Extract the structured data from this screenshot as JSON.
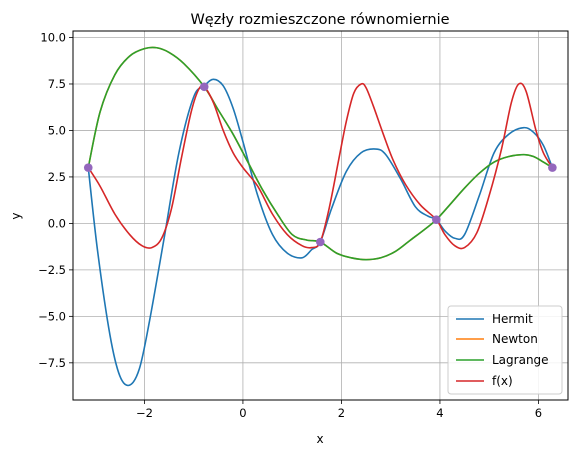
{
  "chart_data": {
    "type": "line",
    "title": "Węzły rozmieszczone równomiernie",
    "xlabel": "x",
    "ylabel": "y",
    "xlim": [
      -3.45,
      6.6
    ],
    "ylim": [
      -9.5,
      10.35
    ],
    "xticks": [
      -2,
      0,
      2,
      4,
      6
    ],
    "xtick_labels": [
      "−2",
      "0",
      "2",
      "4",
      "6"
    ],
    "yticks": [
      -7.5,
      -5.0,
      -2.5,
      0.0,
      2.5,
      5.0,
      7.5,
      10.0
    ],
    "ytick_labels": [
      "−7.5",
      "−5.0",
      "−2.5",
      "0.0",
      "2.5",
      "5.0",
      "7.5",
      "10.0"
    ],
    "grid": true,
    "legend_position": "lower-right",
    "series": [
      {
        "name": "Hermit",
        "color": "#1f77b4",
        "x": [
          -3.14,
          -2.95,
          -2.7,
          -2.5,
          -2.3,
          -2.1,
          -1.9,
          -1.6,
          -1.3,
          -1.0,
          -0.785,
          -0.6,
          -0.4,
          -0.2,
          0.0,
          0.3,
          0.6,
          0.9,
          1.2,
          1.4,
          1.571,
          1.8,
          2.1,
          2.4,
          2.7,
          2.9,
          3.2,
          3.5,
          3.75,
          3.927,
          4.1,
          4.3,
          4.5,
          4.8,
          5.1,
          5.4,
          5.7,
          5.9,
          6.1,
          6.283
        ],
        "y": [
          3.0,
          -1.5,
          -6.0,
          -8.2,
          -8.7,
          -7.8,
          -5.3,
          -0.8,
          3.8,
          6.8,
          7.4,
          7.75,
          7.4,
          6.2,
          4.4,
          1.5,
          -0.6,
          -1.6,
          -1.85,
          -1.4,
          -1.0,
          0.8,
          2.8,
          3.8,
          4.0,
          3.7,
          2.4,
          0.9,
          0.4,
          0.2,
          -0.4,
          -0.8,
          -0.6,
          1.5,
          3.8,
          4.8,
          5.15,
          4.9,
          4.2,
          3.0
        ]
      },
      {
        "name": "Newton",
        "color": "#ff7f0e",
        "x": [
          -3.14,
          -2.9,
          -2.6,
          -2.3,
          -2.0,
          -1.75,
          -1.5,
          -1.2,
          -0.785,
          -0.5,
          -0.2,
          0.1,
          0.4,
          0.7,
          1.0,
          1.3,
          1.571,
          1.9,
          2.2,
          2.5,
          2.8,
          3.1,
          3.4,
          3.7,
          3.927,
          4.2,
          4.5,
          4.8,
          5.1,
          5.4,
          5.7,
          5.9,
          6.1,
          6.283
        ],
        "y": [
          3.0,
          6.0,
          8.0,
          9.0,
          9.4,
          9.45,
          9.2,
          8.6,
          7.35,
          6.1,
          4.8,
          3.3,
          1.8,
          0.5,
          -0.6,
          -0.9,
          -1.0,
          -1.6,
          -1.85,
          -1.95,
          -1.85,
          -1.5,
          -0.9,
          -0.3,
          0.2,
          1.0,
          1.9,
          2.7,
          3.3,
          3.6,
          3.7,
          3.6,
          3.3,
          3.0
        ]
      },
      {
        "name": "Lagrange",
        "color": "#2ca02c",
        "x": [
          -3.14,
          -2.9,
          -2.6,
          -2.3,
          -2.0,
          -1.75,
          -1.5,
          -1.2,
          -0.785,
          -0.5,
          -0.2,
          0.1,
          0.4,
          0.7,
          1.0,
          1.3,
          1.571,
          1.9,
          2.2,
          2.5,
          2.8,
          3.1,
          3.4,
          3.7,
          3.927,
          4.2,
          4.5,
          4.8,
          5.1,
          5.4,
          5.7,
          5.9,
          6.1,
          6.283
        ],
        "y": [
          3.0,
          6.0,
          8.0,
          9.0,
          9.4,
          9.45,
          9.2,
          8.6,
          7.35,
          6.1,
          4.8,
          3.3,
          1.8,
          0.5,
          -0.6,
          -0.9,
          -1.0,
          -1.6,
          -1.85,
          -1.95,
          -1.85,
          -1.5,
          -0.9,
          -0.3,
          0.2,
          1.0,
          1.9,
          2.7,
          3.3,
          3.6,
          3.7,
          3.6,
          3.3,
          3.0
        ]
      },
      {
        "name": "f(x)",
        "color": "#d62728",
        "x": [
          -3.14,
          -2.9,
          -2.6,
          -2.3,
          -2.05,
          -1.85,
          -1.65,
          -1.45,
          -1.25,
          -1.05,
          -0.9,
          -0.785,
          -0.6,
          -0.4,
          -0.2,
          0.0,
          0.3,
          0.6,
          0.9,
          1.2,
          1.4,
          1.571,
          1.75,
          1.95,
          2.1,
          2.25,
          2.4,
          2.5,
          2.65,
          2.85,
          3.05,
          3.3,
          3.6,
          3.927,
          4.1,
          4.3,
          4.5,
          4.75,
          5.0,
          5.25,
          5.45,
          5.6,
          5.75,
          5.95,
          6.1,
          6.283
        ],
        "y": [
          3.0,
          2.0,
          0.5,
          -0.6,
          -1.2,
          -1.3,
          -0.8,
          0.8,
          3.5,
          6.0,
          7.2,
          7.35,
          6.5,
          5.0,
          3.8,
          3.0,
          2.0,
          0.5,
          -0.6,
          -1.2,
          -1.3,
          -1.0,
          0.8,
          3.5,
          5.5,
          7.0,
          7.5,
          7.3,
          6.3,
          4.8,
          3.4,
          2.1,
          1.0,
          0.2,
          -0.6,
          -1.2,
          -1.3,
          -0.5,
          1.5,
          4.0,
          6.5,
          7.5,
          7.1,
          5.0,
          3.8,
          3.0
        ]
      }
    ],
    "nodes": {
      "color": "#9467bd",
      "x": [
        -3.14,
        -0.785,
        1.571,
        3.927,
        6.283
      ],
      "y": [
        3.0,
        7.35,
        -1.0,
        0.2,
        3.0
      ]
    }
  }
}
